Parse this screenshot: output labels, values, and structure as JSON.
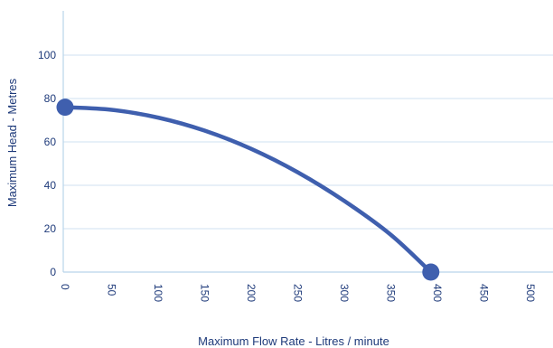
{
  "chart_data": {
    "type": "line",
    "title": "",
    "xlabel": "Maximum Flow Rate - Litres / minute",
    "ylabel": "Maximum Head - Metres",
    "xlim": [
      0,
      520
    ],
    "ylim": [
      0,
      110
    ],
    "x_ticks": [
      0,
      50,
      100,
      150,
      200,
      250,
      300,
      350,
      400,
      450,
      500
    ],
    "y_ticks": [
      0,
      20,
      40,
      60,
      80,
      100
    ],
    "grid": true,
    "series": [
      {
        "color": "#3f5fae",
        "x": [
          0,
          50,
          100,
          150,
          200,
          250,
          300,
          350,
          393
        ],
        "y": [
          76,
          74.8,
          71.2,
          65.2,
          56.8,
          46,
          32.8,
          17.2,
          0
        ]
      }
    ],
    "endpoints": [
      {
        "x": 0,
        "y": 76
      },
      {
        "x": 393,
        "y": 0
      }
    ]
  }
}
